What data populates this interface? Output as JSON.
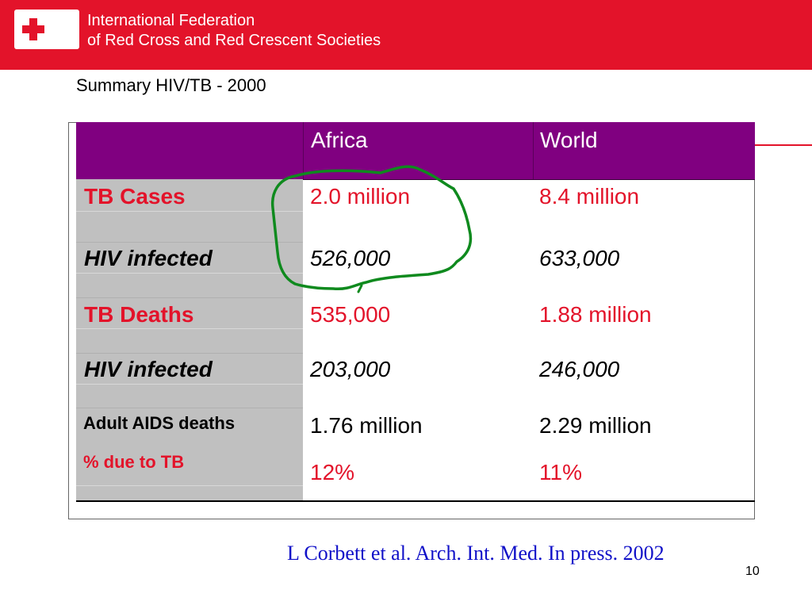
{
  "header": {
    "org_line1": "International Federation",
    "org_line2": "of Red Cross and Red Crescent Societies",
    "brand_color": "#e3132a",
    "logo_icon": "red-cross-red-crescent-logo"
  },
  "slide": {
    "title": "Summary HIV/TB - 2000",
    "citation": "L Corbett et al. Arch. Int. Med. In press. 2002",
    "page_number": "10"
  },
  "table": {
    "header_color": "#800080",
    "columns": [
      "",
      "Africa",
      "World"
    ],
    "rows": [
      {
        "label": "TB Cases",
        "africa": "2.0 million",
        "world": "8.4 million"
      },
      {
        "label": "HIV infected",
        "africa": "526,000",
        "world": "633,000"
      },
      {
        "label": "TB Deaths",
        "africa": "535,000",
        "world": "1.88 million"
      },
      {
        "label": "HIV infected",
        "africa": "203,000",
        "world": "246,000"
      },
      {
        "label": "Adult AIDS deaths",
        "africa": "1.76 million",
        "world": "2.29 million"
      },
      {
        "label": "% due to TB",
        "africa": "12%",
        "world": "11%"
      }
    ]
  },
  "annotation": {
    "color": "#0f8a1e",
    "shape": "hand-drawn-circle"
  }
}
